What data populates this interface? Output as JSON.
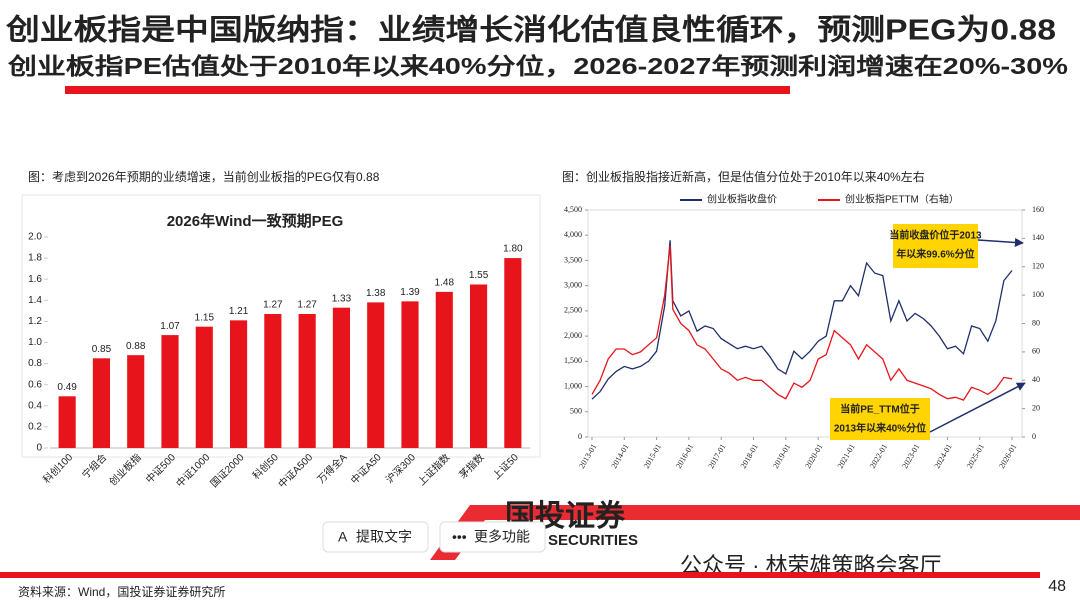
{
  "header": {
    "title": "创业板指是中国版纳指：业绩增长消化估值良性循环，预测PEG为0.88",
    "subtitle": "创业板指PE估值处于2010年以来40%分位，2026-2027年预测利润增速在20%-30%"
  },
  "chart_data": [
    {
      "type": "bar",
      "caption": "图：考虑到2026年预期的业绩增速，当前创业板指的PEG仅有0.88",
      "title": "2026年Wind一致预期PEG",
      "categories": [
        "科创100",
        "宁组合",
        "创业板指",
        "中证500",
        "中证1000",
        "国证2000",
        "科创50",
        "中证A500",
        "万得全A",
        "中证A50",
        "沪深300",
        "上证指数",
        "茅指数",
        "上证50"
      ],
      "values": [
        0.49,
        0.85,
        0.88,
        1.07,
        1.15,
        1.21,
        1.27,
        1.27,
        1.33,
        1.38,
        1.39,
        1.48,
        1.55,
        1.8
      ],
      "value_labels": [
        "0.49",
        "0.85",
        "0.88",
        "1.07",
        "1.15",
        "1.21",
        "1.27",
        "1.27",
        "1.33",
        "1.38",
        "1.39",
        "1.48",
        "1.55",
        "1.80"
      ],
      "color": "#e8141b",
      "ylim": [
        0,
        2
      ],
      "yticks": [
        0,
        0.2,
        0.4,
        0.6,
        0.8,
        {
          "value": 1,
          "label": "1.0"
        },
        1.2,
        1.4,
        1.6,
        1.8,
        {
          "value": 2,
          "label": "2.0"
        }
      ]
    },
    {
      "type": "line",
      "caption": "图：创业板指股指接近新高，但是估值分位处于2010年以来40%左右",
      "x": [
        "2013-01",
        "2013-04",
        "2013-07",
        "2013-10",
        "2014-01",
        "2014-04",
        "2014-07",
        "2014-10",
        "2015-01",
        "2015-04",
        "2015-06",
        "2015-07",
        "2015-10",
        "2016-01",
        "2016-04",
        "2016-07",
        "2016-10",
        "2017-01",
        "2017-04",
        "2017-07",
        "2017-10",
        "2018-01",
        "2018-04",
        "2018-07",
        "2018-10",
        "2019-01",
        "2019-04",
        "2019-07",
        "2019-10",
        "2020-01",
        "2020-04",
        "2020-07",
        "2020-10",
        "2021-01",
        "2021-04",
        "2021-07",
        "2021-10",
        "2022-01",
        "2022-04",
        "2022-07",
        "2022-10",
        "2023-01",
        "2023-04",
        "2023-07",
        "2023-10",
        "2024-01",
        "2024-04",
        "2024-07",
        "2024-10",
        "2025-01",
        "2025-04",
        "2025-07",
        "2025-10",
        "2026-01"
      ],
      "xticks": [
        "2013-01",
        "2014-01",
        "2015-01",
        "2016-01",
        "2017-01",
        "2018-01",
        "2019-01",
        "2020-01",
        "2021-01",
        "2022-01",
        "2023-01",
        "2024-01",
        "2025-01",
        "2026-01"
      ],
      "ylim": [
        0,
        4500
      ],
      "yticks": [
        0,
        500,
        {
          "value": 1000,
          "label": "1,000"
        },
        {
          "value": 1500,
          "label": "1,500"
        },
        {
          "value": 2000,
          "label": "2,000"
        },
        {
          "value": 2500,
          "label": "2,500"
        },
        {
          "value": 3000,
          "label": "3,000"
        },
        {
          "value": 3500,
          "label": "3,500"
        },
        {
          "value": 4000,
          "label": "4,000"
        },
        {
          "value": 4500,
          "label": "4,500"
        }
      ],
      "y2lim": [
        0,
        160
      ],
      "y2ticks": [
        0,
        20,
        40,
        60,
        80,
        100,
        120,
        140,
        160
      ],
      "series": [
        {
          "name": "创业板指收盘价",
          "color": "#1f2f6b",
          "values": [
            750,
            900,
            1150,
            1300,
            1400,
            1350,
            1400,
            1500,
            1700,
            2600,
            3900,
            2700,
            2400,
            2500,
            2100,
            2200,
            2150,
            1950,
            1850,
            1750,
            1800,
            1750,
            1800,
            1600,
            1350,
            1250,
            1700,
            1550,
            1700,
            1900,
            2000,
            2700,
            2700,
            3000,
            2800,
            3450,
            3250,
            3200,
            2300,
            2700,
            2300,
            2450,
            2350,
            2200,
            2000,
            1750,
            1800,
            1650,
            2200,
            2150,
            1900,
            2300,
            3100,
            3300
          ]
        },
        {
          "name": "创业板指PETTM（右轴）",
          "color": "#e8141b",
          "axis": "y2",
          "values": [
            30,
            40,
            55,
            62,
            62,
            58,
            60,
            65,
            70,
            100,
            135,
            90,
            80,
            75,
            65,
            62,
            55,
            48,
            45,
            40,
            42,
            40,
            40,
            35,
            30,
            27,
            38,
            35,
            40,
            55,
            58,
            75,
            70,
            65,
            55,
            65,
            60,
            55,
            40,
            48,
            40,
            38,
            36,
            34,
            30,
            27,
            28,
            26,
            35,
            33,
            30,
            34,
            42,
            41
          ]
        }
      ],
      "annotations": [
        {
          "lines": [
            "当前收盘价位于2013",
            "年以来99.6%分位"
          ]
        },
        {
          "lines": [
            "当前PE_TTM位于",
            "2013年以来40%分位"
          ]
        }
      ]
    }
  ],
  "overlay": {
    "logo": "国投证券",
    "logo_en": "SECURITIES",
    "buttons": [
      "提取文字",
      "更多功能"
    ],
    "watermark": "公众号 · 林荣雄策略会客厅"
  },
  "footer": {
    "source": "资料来源：Wind，国投证券证券研究所",
    "page": "48"
  }
}
